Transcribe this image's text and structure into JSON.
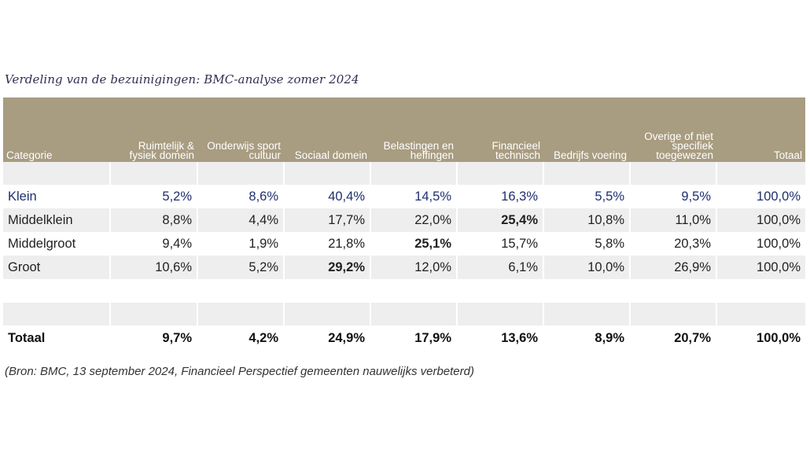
{
  "title": "Verdeling van de bezuinigingen: BMC-analyse zomer 2024",
  "source": "(Bron: BMC, 13 september 2024, Financieel Perspectief gemeenten nauwelijks verbeterd)",
  "table": {
    "headers": [
      "Categorie",
      "Ruimtelijk & fysiek domein",
      "Onderwijs sport cultuur",
      "Sociaal domein",
      "Belastingen en heffingen",
      "Financieel technisch",
      "Bedrijfs voering",
      "Overige of niet specifiek toegewezen",
      "Totaal"
    ],
    "rows": [
      {
        "label": "Klein",
        "values": [
          "5,2%",
          "8,6%",
          "40,4%",
          "14,5%",
          "16,3%",
          "5,5%",
          "9,5%",
          "100,0%"
        ]
      },
      {
        "label": "Middelklein",
        "values": [
          "8,8%",
          "4,4%",
          "17,7%",
          "22,0%",
          "25,4%",
          "10,8%",
          "11,0%",
          "100,0%"
        ]
      },
      {
        "label": "Middelgroot",
        "values": [
          "9,4%",
          "1,9%",
          "21,8%",
          "25,1%",
          "15,7%",
          "5,8%",
          "20,3%",
          "100,0%"
        ]
      },
      {
        "label": "Groot",
        "values": [
          "10,6%",
          "5,2%",
          "29,2%",
          "12,0%",
          "6,1%",
          "10,0%",
          "26,9%",
          "100,0%"
        ]
      }
    ],
    "total": {
      "label": "Totaal",
      "values": [
        "9,7%",
        "4,2%",
        "24,9%",
        "17,9%",
        "13,6%",
        "8,9%",
        "20,7%",
        "100,0%"
      ]
    }
  }
}
